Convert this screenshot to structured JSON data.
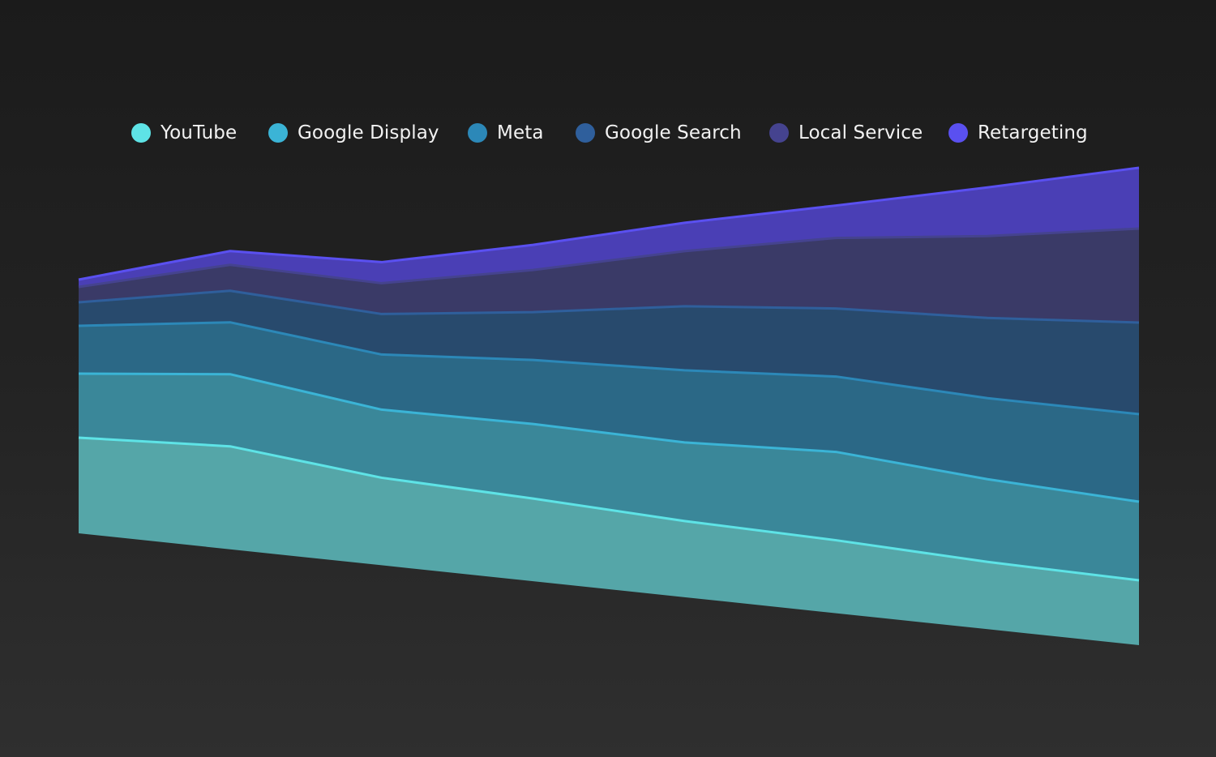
{
  "chart_data": {
    "type": "area",
    "stacked": true,
    "title": "",
    "xlabel": "",
    "ylabel": "",
    "x": [
      1,
      2,
      3,
      4,
      5,
      6,
      7,
      8
    ],
    "legend_position": "top",
    "grid": false,
    "series": [
      {
        "name": "YouTube",
        "color": "#5ee3e6",
        "fill": "#55a6a8",
        "values": [
          118,
          127,
          108,
          102,
          94,
          90,
          83,
          80
        ]
      },
      {
        "name": "Google Display",
        "color": "#3bb4d6",
        "fill": "#3a8799",
        "values": [
          79,
          89,
          84,
          92,
          97,
          109,
          102,
          97
        ]
      },
      {
        "name": "Meta",
        "color": "#2c88b8",
        "fill": "#2b6886",
        "values": [
          59,
          64,
          68,
          79,
          89,
          93,
          100,
          108
        ]
      },
      {
        "name": "Google Search",
        "color": "#2f5f9c",
        "fill": "#284a6d",
        "values": [
          29,
          39,
          50,
          59,
          79,
          84,
          99,
          113
        ]
      },
      {
        "name": "Local Service",
        "color": "#45438f",
        "fill": "#3a3a67",
        "values": [
          19,
          32,
          38,
          52,
          68,
          87,
          101,
          116
        ]
      },
      {
        "name": "Retargeting",
        "color": "#5a50f0",
        "fill": "#4a3fb5",
        "values": [
          9,
          17,
          26,
          31,
          35,
          40,
          60,
          75
        ]
      }
    ]
  }
}
